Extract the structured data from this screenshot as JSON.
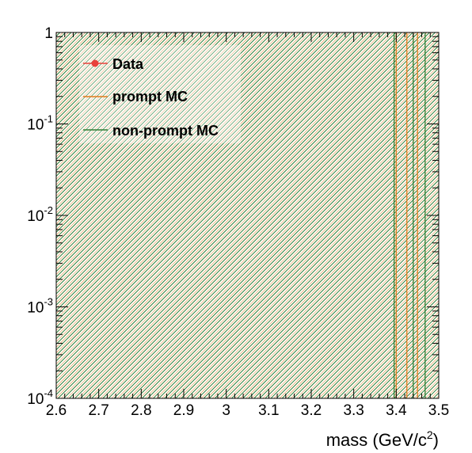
{
  "chart_data": {
    "type": "line",
    "title": "",
    "xlabel": "mass (GeV/c",
    "xlabel_sup": "2",
    "xlabel_close": ")",
    "ylabel": "",
    "xlim": [
      2.6,
      3.5
    ],
    "ylim": [
      0.0001,
      1
    ],
    "yscale": "log",
    "x_ticks": [
      "2.6",
      "2.7",
      "2.8",
      "2.9",
      "3",
      "3.1",
      "3.2",
      "3.3",
      "3.4",
      "3.5"
    ],
    "y_ticks": [
      {
        "value": 0.0001,
        "base": "10",
        "exp": "-4"
      },
      {
        "value": 0.001,
        "base": "10",
        "exp": "-3"
      },
      {
        "value": 0.01,
        "base": "10",
        "exp": "-2"
      },
      {
        "value": 0.1,
        "base": "10",
        "exp": "-1"
      },
      {
        "value": 1,
        "base": "1",
        "exp": ""
      }
    ],
    "legend": {
      "placement": "top-left",
      "entries": [
        {
          "label": "Data",
          "style": "marker",
          "color": "#e8413c"
        },
        {
          "label": "prompt MC",
          "style": "line",
          "color": "#e07b1a"
        },
        {
          "label": "non-prompt MC",
          "style": "line",
          "color": "#2e7d32"
        }
      ]
    },
    "series": [
      {
        "name": "prompt MC",
        "color": "#e07b1a",
        "edges": [
          2.6,
          3.4,
          3.425,
          3.45,
          3.5
        ]
      },
      {
        "name": "non-prompt MC",
        "color": "#2e7d32",
        "edges": [
          2.6,
          3.395,
          3.44,
          3.468,
          3.5
        ]
      }
    ],
    "grid": false
  }
}
